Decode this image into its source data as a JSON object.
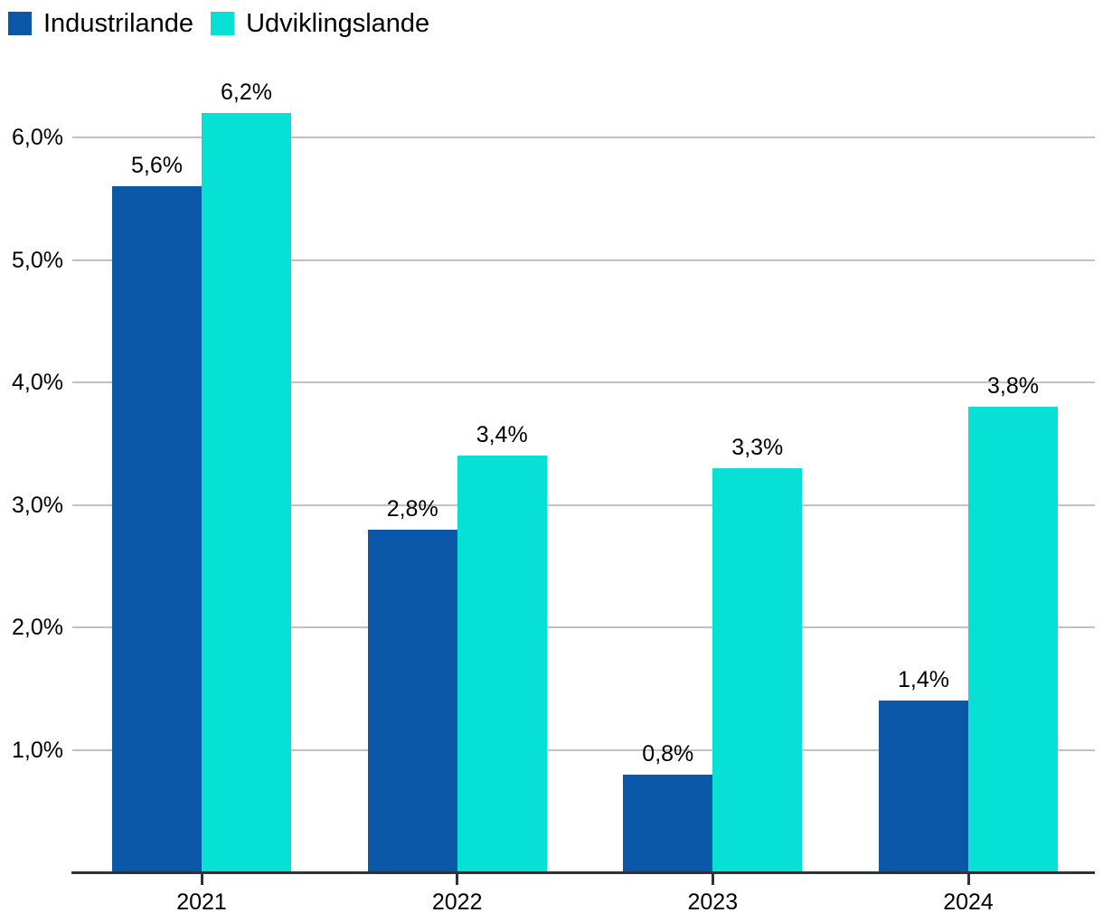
{
  "chart_data": {
    "type": "bar",
    "title": "",
    "categories": [
      "2021",
      "2022",
      "2023",
      "2024"
    ],
    "series": [
      {
        "name": "Industrilande",
        "color": "#0b57a8",
        "values": [
          5.6,
          2.8,
          0.8,
          1.4
        ],
        "labels": [
          "5,6%",
          "2,8%",
          "0,8%",
          "1,4%"
        ]
      },
      {
        "name": "Udviklingslande",
        "color": "#06e0d5",
        "values": [
          6.2,
          3.4,
          3.3,
          3.8
        ],
        "labels": [
          "6,2%",
          "3,4%",
          "3,3%",
          "3,8%"
        ]
      }
    ],
    "y_axis": {
      "ticks": [
        1,
        2,
        3,
        4,
        5,
        6
      ],
      "tick_labels": [
        "1,0%",
        "2,0%",
        "3,0%",
        "4,0%",
        "5,0%",
        "6,0%"
      ],
      "range": [
        0,
        6.2
      ],
      "grid": true
    },
    "x_axis": {
      "tick_labels": [
        "2021",
        "2022",
        "2023",
        "2024"
      ]
    },
    "legend_position": "top-left",
    "colors": {
      "gridline": "#c1c1c1",
      "axis": "#2e3338",
      "text": "#000000",
      "background": "#ffffff"
    }
  }
}
